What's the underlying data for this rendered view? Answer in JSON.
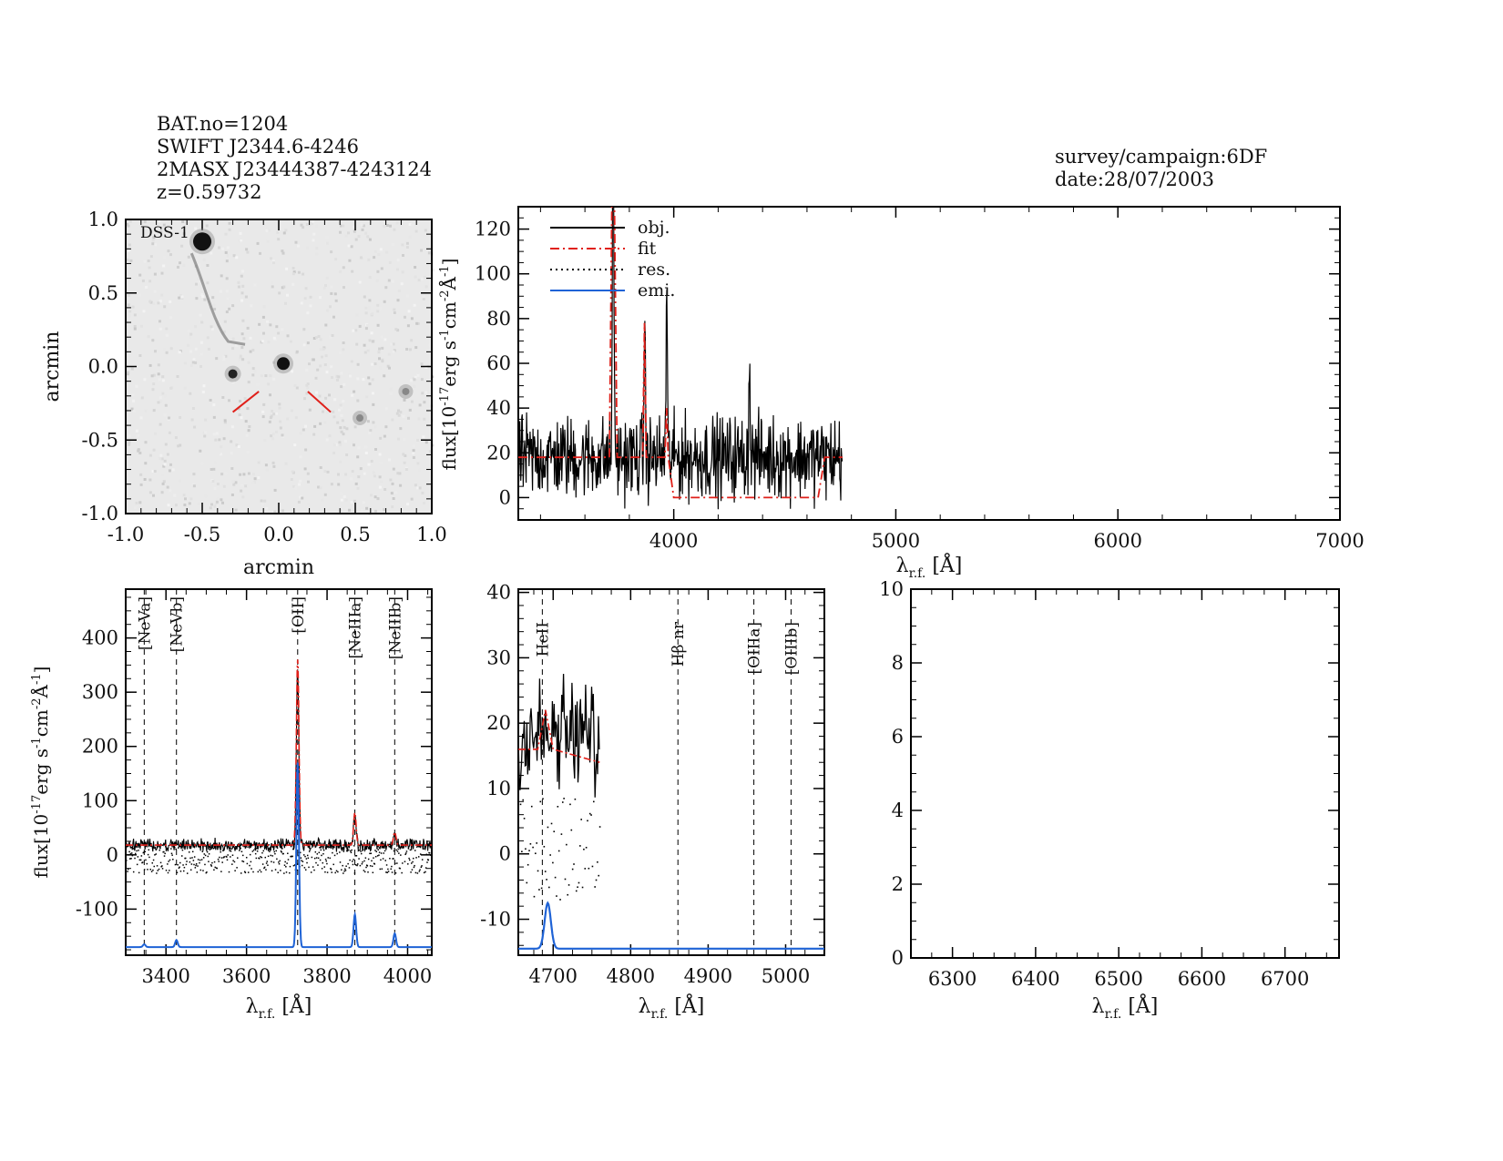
{
  "header": {
    "bat_no": "BAT.no=1204",
    "swift_name": "SWIFT J2344.6-4246",
    "twomass_name": "2MASX J23444387-4243124",
    "redshift": "z=0.59732",
    "survey": "survey/campaign:6DF",
    "date": "date:28/07/2003"
  },
  "chart_data": [
    {
      "id": "image",
      "type": "heatmap",
      "title": "DSS-1",
      "xlabel": "arcmin",
      "ylabel": "arcmin",
      "xlim": [
        -1.0,
        1.0
      ],
      "ylim": [
        -1.0,
        1.0
      ],
      "xticks": [
        "-1.0",
        "-0.5",
        "0.0",
        "0.5",
        "1.0"
      ],
      "yticks": [
        "-1.0",
        "-0.5",
        "0.0",
        "0.5",
        "1.0"
      ],
      "sources": [
        {
          "x": -0.5,
          "y": 0.85,
          "size": "large"
        },
        {
          "x": 0.03,
          "y": 0.02,
          "size": "medium"
        },
        {
          "x": -0.3,
          "y": -0.05,
          "size": "small"
        },
        {
          "x": 0.53,
          "y": -0.35,
          "size": "faint"
        },
        {
          "x": 0.83,
          "y": -0.17,
          "size": "faint"
        }
      ],
      "marker": "target-tick-marks"
    },
    {
      "id": "full-spectrum",
      "type": "line",
      "xlabel": "λ r.f. [Å]",
      "ylabel": "flux[10^-17 erg s^-1 cm^-2 Å^-1]",
      "xlim": [
        3300,
        7000
      ],
      "ylim": [
        -10,
        130
      ],
      "xticks": [
        "4000",
        "5000",
        "6000",
        "7000"
      ],
      "yticks": [
        "0",
        "20",
        "40",
        "60",
        "80",
        "100",
        "120"
      ],
      "legend": [
        "obj.",
        "fit",
        "res.",
        "emi."
      ],
      "legend_position": "top-left",
      "series": [
        {
          "name": "obj.",
          "color": "#000000",
          "x_range": [
            3300,
            4760
          ],
          "continuum": 18,
          "noise": 14,
          "lines": [
            {
              "x": 3727,
              "peak": 190
            },
            {
              "x": 3869,
              "peak": 80
            },
            {
              "x": 3968,
              "peak": 93
            },
            {
              "x": 4341,
              "peak": 62
            }
          ]
        },
        {
          "name": "fit",
          "color": "#e0201a",
          "points": [
            [
              3300,
              18
            ],
            [
              3710,
              18
            ],
            [
              3722,
              140
            ],
            [
              3727,
              190
            ],
            [
              3732,
              140
            ],
            [
              3745,
              18
            ],
            [
              3860,
              18
            ],
            [
              3868,
              78
            ],
            [
              3876,
              18
            ],
            [
              3960,
              18
            ],
            [
              3968,
              40
            ],
            [
              3975,
              18
            ],
            [
              4000,
              0
            ],
            [
              4650,
              0
            ],
            [
              4680,
              18
            ],
            [
              4760,
              18
            ]
          ]
        }
      ]
    },
    {
      "id": "zoom-oii",
      "type": "line",
      "xlabel": "λ r.f. [Å]",
      "ylabel": "flux[10^-17 erg s^-1 cm^-2 Å^-1]",
      "xlim": [
        3300,
        4060
      ],
      "ylim": [
        -185,
        490
      ],
      "xticks": [
        "3400",
        "3600",
        "3800",
        "4000"
      ],
      "yticks": [
        "-100",
        "0",
        "100",
        "200",
        "300",
        "400"
      ],
      "line_markers": [
        {
          "label": "[NeVa]",
          "x": 3346,
          "color": "#e0201a"
        },
        {
          "label": "[NeVb]",
          "x": 3426,
          "color": "#e0201a"
        },
        {
          "label": "[OII]",
          "x": 3727,
          "color": "#000000"
        },
        {
          "label": "[NeIIIa]",
          "x": 3869,
          "color": "#000000"
        },
        {
          "label": "[NeIIIb]",
          "x": 3968,
          "color": "#e0201a"
        }
      ],
      "series": [
        {
          "name": "obj.",
          "continuum": 18,
          "noise": 10,
          "lines": [
            {
              "x": 3727,
              "peak": 340
            },
            {
              "x": 3869,
              "peak": 75
            },
            {
              "x": 3968,
              "peak": 40
            }
          ]
        },
        {
          "name": "fit",
          "continuum": 18,
          "lines": [
            {
              "x": 3727,
              "peak": 360
            },
            {
              "x": 3869,
              "peak": 78
            },
            {
              "x": 3968,
              "peak": 42
            }
          ]
        },
        {
          "name": "emi.",
          "baseline": -170,
          "lines": [
            {
              "x": 3346,
              "peak": -165
            },
            {
              "x": 3426,
              "peak": -157
            },
            {
              "x": 3727,
              "peak": 170
            },
            {
              "x": 3869,
              "peak": -110
            },
            {
              "x": 3968,
              "peak": -145
            }
          ]
        }
      ]
    },
    {
      "id": "zoom-hbeta",
      "type": "line",
      "xlabel": "λ r.f. [Å]",
      "xlim": [
        4655,
        5050
      ],
      "ylim": [
        -15.5,
        40.5
      ],
      "xticks": [
        "4700",
        "4800",
        "4900",
        "5000"
      ],
      "yticks": [
        "-10",
        "0",
        "10",
        "20",
        "30",
        "40"
      ],
      "line_markers": [
        {
          "label": "HeII",
          "x": 4686,
          "color": "#e0201a"
        },
        {
          "label": "Hβ nr",
          "x": 4861,
          "color": "#e0201a"
        },
        {
          "label": "[OIIIa]",
          "x": 4959,
          "color": "#e0201a"
        },
        {
          "label": "[OIIIb]",
          "x": 5007,
          "color": "#e0201a"
        }
      ],
      "series": [
        {
          "name": "obj.",
          "x_range": [
            4655,
            4760
          ],
          "continuum": 18,
          "noise": 6
        },
        {
          "name": "fit",
          "points": [
            [
              4655,
              16
            ],
            [
              4680,
              16
            ],
            [
              4690,
              22
            ],
            [
              4700,
              16
            ],
            [
              4760,
              14
            ]
          ]
        },
        {
          "name": "emi.",
          "baseline": -14.5,
          "lines": [
            {
              "x": 4693,
              "peak": -7.5
            }
          ]
        }
      ]
    },
    {
      "id": "zoom-halpha",
      "type": "line",
      "xlabel": "λ r.f. [Å]",
      "xlim": [
        6250,
        6765
      ],
      "ylim": [
        0,
        10
      ],
      "xticks": [
        "6300",
        "6400",
        "6500",
        "6600",
        "6700"
      ],
      "yticks": [
        "0",
        "2",
        "4",
        "6",
        "8",
        "10"
      ],
      "series": []
    }
  ]
}
